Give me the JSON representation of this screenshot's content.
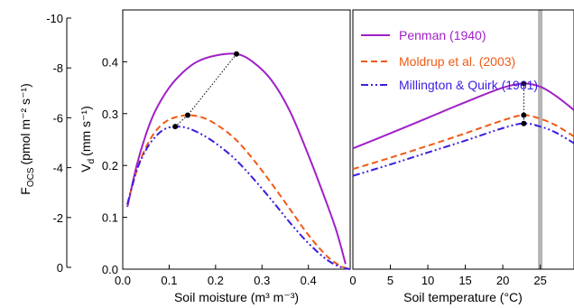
{
  "colors": {
    "penman": "#a020c8",
    "moldrup": "#f05a14",
    "millington": "#3b1ee0",
    "dots": "#000000",
    "marker_band": "#b4b4b4"
  },
  "chart_data": [
    {
      "type": "line",
      "panel": "left",
      "xlabel": "Soil moisture (m³ m⁻³)",
      "ylabel_left_base": "F",
      "ylabel_left_sub": "OCS",
      "ylabel_left_units": "(pmol m⁻² s⁻¹)",
      "ylabel_right_base": "V",
      "ylabel_right_sub": "d",
      "ylabel_right_units": "(mm s⁻¹)",
      "xlim": [
        0,
        0.49
      ],
      "ylim": [
        0,
        0.5
      ],
      "xticks": [
        0.0,
        0.1,
        0.2,
        0.3,
        0.4
      ],
      "xtick_labels": [
        "0.0",
        "0.1",
        "0.2",
        "0.3",
        "0.4"
      ],
      "yticks": [
        0.0,
        0.1,
        0.2,
        0.3,
        0.4
      ],
      "ytick_labels": [
        "0.0",
        "0.1",
        "0.2",
        "0.3",
        "0.4"
      ],
      "flux_ticks": [
        0,
        2,
        4,
        6,
        8,
        10
      ],
      "flux_tick_labels": [
        "0",
        "-2",
        "-4",
        "-6",
        "-8",
        "-10"
      ],
      "series": [
        {
          "name": "Penman (1940)",
          "color_key": "penman",
          "dash": "",
          "x": [
            0.01,
            0.03,
            0.05,
            0.07,
            0.1,
            0.13,
            0.16,
            0.2,
            0.245,
            0.28,
            0.32,
            0.36,
            0.4,
            0.43,
            0.46,
            0.48
          ],
          "y": [
            0.12,
            0.2,
            0.26,
            0.305,
            0.35,
            0.38,
            0.4,
            0.412,
            0.415,
            0.4,
            0.365,
            0.305,
            0.22,
            0.15,
            0.075,
            0.01
          ]
        },
        {
          "name": "Moldrup et al. (2003)",
          "color_key": "moldrup",
          "dash": "7,4",
          "x": [
            0.01,
            0.03,
            0.05,
            0.07,
            0.09,
            0.11,
            0.14,
            0.17,
            0.2,
            0.24,
            0.28,
            0.32,
            0.36,
            0.4,
            0.44,
            0.47,
            0.49
          ],
          "y": [
            0.125,
            0.19,
            0.235,
            0.265,
            0.283,
            0.292,
            0.297,
            0.293,
            0.28,
            0.253,
            0.213,
            0.166,
            0.116,
            0.066,
            0.025,
            0.006,
            0.0
          ]
        },
        {
          "name": "Millington & Quirk (1961)",
          "color_key": "millington",
          "dash": "8,3,2,3,2,3",
          "x": [
            0.01,
            0.03,
            0.05,
            0.07,
            0.09,
            0.113,
            0.14,
            0.17,
            0.2,
            0.24,
            0.28,
            0.32,
            0.36,
            0.4,
            0.44,
            0.47,
            0.49
          ],
          "y": [
            0.125,
            0.19,
            0.23,
            0.255,
            0.27,
            0.275,
            0.272,
            0.26,
            0.243,
            0.214,
            0.176,
            0.134,
            0.09,
            0.05,
            0.018,
            0.004,
            0.0
          ]
        }
      ],
      "optimum_points": [
        {
          "x": 0.245,
          "y": 0.415
        },
        {
          "x": 0.14,
          "y": 0.297
        },
        {
          "x": 0.113,
          "y": 0.275
        }
      ]
    },
    {
      "type": "line",
      "panel": "right",
      "xlabel": "Soil temperature (°C)",
      "xlim": [
        0,
        29.5
      ],
      "ylim": [
        0,
        0.5
      ],
      "xticks": [
        0,
        5,
        10,
        15,
        20,
        25
      ],
      "xtick_labels": [
        "0",
        "5",
        "10",
        "15",
        "20",
        "25"
      ],
      "vertical_marker_x": 25,
      "series": [
        {
          "name": "Penman (1940)",
          "color_key": "penman",
          "dash": "",
          "x": [
            0,
            5,
            10,
            15,
            20,
            22.8,
            25,
            27,
            29.5
          ],
          "y": [
            0.233,
            0.262,
            0.292,
            0.322,
            0.35,
            0.358,
            0.352,
            0.335,
            0.307
          ]
        },
        {
          "name": "Moldrup et al. (2003)",
          "color_key": "moldrup",
          "dash": "7,4",
          "x": [
            0,
            5,
            10,
            15,
            20,
            22.8,
            25,
            27,
            29.5
          ],
          "y": [
            0.193,
            0.215,
            0.238,
            0.262,
            0.287,
            0.297,
            0.29,
            0.278,
            0.256
          ]
        },
        {
          "name": "Millington & Quirk (1961)",
          "color_key": "millington",
          "dash": "8,3,2,3,2,3",
          "x": [
            0,
            5,
            10,
            15,
            20,
            22.8,
            25,
            27,
            29.5
          ],
          "y": [
            0.18,
            0.202,
            0.225,
            0.248,
            0.272,
            0.281,
            0.275,
            0.264,
            0.243
          ]
        }
      ],
      "optimum_points": [
        {
          "x": 22.8,
          "y": 0.358
        },
        {
          "x": 22.8,
          "y": 0.297
        },
        {
          "x": 22.8,
          "y": 0.281
        }
      ]
    }
  ]
}
